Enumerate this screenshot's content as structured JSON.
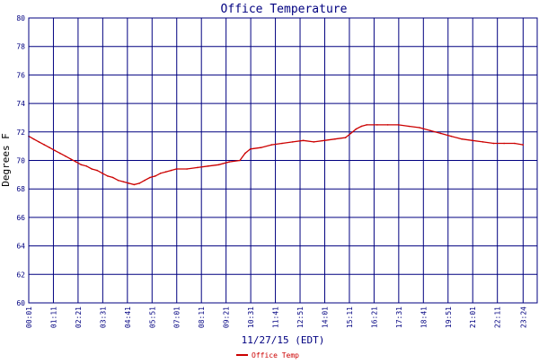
{
  "chart_data": {
    "type": "line",
    "title": "Office Temperature",
    "xlabel": "11/27/15 (EDT)",
    "ylabel": "Degrees F",
    "ylim": [
      60,
      80
    ],
    "yticks": [
      60,
      62,
      64,
      66,
      68,
      70,
      72,
      74,
      76,
      78,
      80
    ],
    "xlim_minutes": [
      1,
      1444
    ],
    "xticks": [
      "00:01",
      "01:11",
      "02:21",
      "03:31",
      "04:41",
      "05:51",
      "07:01",
      "08:11",
      "09:21",
      "10:31",
      "11:41",
      "12:51",
      "14:01",
      "15:11",
      "16:21",
      "17:31",
      "18:41",
      "19:51",
      "21:01",
      "22:11",
      "23:24"
    ],
    "grid": true,
    "legend_position": "bottom-left",
    "series": [
      {
        "name": "Office Temp",
        "color": "#cc0000",
        "points": [
          [
            "00:01",
            71.7
          ],
          [
            "00:15",
            71.5
          ],
          [
            "00:30",
            71.3
          ],
          [
            "00:45",
            71.1
          ],
          [
            "01:00",
            70.9
          ],
          [
            "01:15",
            70.7
          ],
          [
            "01:30",
            70.5
          ],
          [
            "01:45",
            70.3
          ],
          [
            "02:00",
            70.1
          ],
          [
            "02:15",
            69.9
          ],
          [
            "02:30",
            69.7
          ],
          [
            "02:45",
            69.6
          ],
          [
            "03:00",
            69.4
          ],
          [
            "03:15",
            69.3
          ],
          [
            "03:30",
            69.1
          ],
          [
            "03:45",
            68.9
          ],
          [
            "04:00",
            68.8
          ],
          [
            "04:15",
            68.6
          ],
          [
            "04:30",
            68.5
          ],
          [
            "04:45",
            68.4
          ],
          [
            "05:00",
            68.3
          ],
          [
            "05:15",
            68.4
          ],
          [
            "05:30",
            68.6
          ],
          [
            "05:45",
            68.8
          ],
          [
            "06:00",
            68.9
          ],
          [
            "06:15",
            69.1
          ],
          [
            "06:30",
            69.2
          ],
          [
            "06:45",
            69.3
          ],
          [
            "07:00",
            69.4
          ],
          [
            "07:30",
            69.4
          ],
          [
            "08:00",
            69.5
          ],
          [
            "08:30",
            69.6
          ],
          [
            "09:00",
            69.7
          ],
          [
            "09:30",
            69.9
          ],
          [
            "10:00",
            70.0
          ],
          [
            "10:15",
            70.5
          ],
          [
            "10:30",
            70.8
          ],
          [
            "11:00",
            70.9
          ],
          [
            "11:30",
            71.1
          ],
          [
            "12:00",
            71.2
          ],
          [
            "12:30",
            71.3
          ],
          [
            "13:00",
            71.4
          ],
          [
            "13:30",
            71.3
          ],
          [
            "14:00",
            71.4
          ],
          [
            "14:30",
            71.5
          ],
          [
            "15:00",
            71.6
          ],
          [
            "15:15",
            71.9
          ],
          [
            "15:30",
            72.2
          ],
          [
            "15:45",
            72.4
          ],
          [
            "16:00",
            72.5
          ],
          [
            "16:30",
            72.5
          ],
          [
            "17:00",
            72.5
          ],
          [
            "17:30",
            72.5
          ],
          [
            "18:00",
            72.4
          ],
          [
            "18:30",
            72.3
          ],
          [
            "19:00",
            72.1
          ],
          [
            "19:30",
            71.9
          ],
          [
            "20:00",
            71.7
          ],
          [
            "20:30",
            71.5
          ],
          [
            "21:00",
            71.4
          ],
          [
            "21:30",
            71.3
          ],
          [
            "22:00",
            71.2
          ],
          [
            "22:30",
            71.2
          ],
          [
            "23:00",
            71.2
          ],
          [
            "23:24",
            71.1
          ]
        ]
      }
    ]
  }
}
